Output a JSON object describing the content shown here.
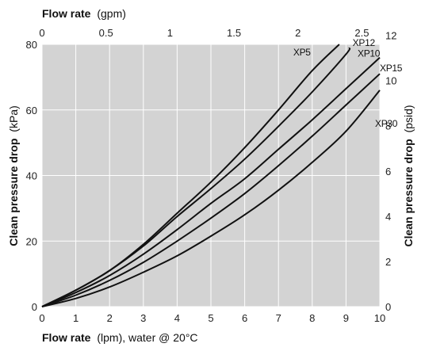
{
  "chart_data": {
    "type": "line",
    "grid": true,
    "background": "#d3d3d3",
    "line_color": "#111111",
    "x_bottom": {
      "title_main": "Flow rate",
      "title_unit": "(lpm), water @ 20°C",
      "range": [
        0,
        10
      ],
      "ticks": [
        "0",
        "1",
        "2",
        "3",
        "4",
        "5",
        "6",
        "7",
        "8",
        "9",
        "10"
      ]
    },
    "x_top": {
      "title_main": "Flow rate",
      "title_unit": "(gpm)",
      "range": [
        0,
        2.64
      ],
      "ticks": [
        "0",
        "0.5",
        "1",
        "1.5",
        "2",
        "2.5"
      ]
    },
    "y_left": {
      "title_main": "Clean pressure drop",
      "title_unit": "(kPa)",
      "range": [
        0,
        80
      ],
      "ticks": [
        "0",
        "20",
        "40",
        "60",
        "80"
      ]
    },
    "y_right": {
      "title_main": "Clean pressure drop",
      "title_unit": "(psid)",
      "range": [
        0,
        11.6
      ],
      "ticks": [
        "0",
        "2",
        "4",
        "6",
        "8",
        "10",
        "12"
      ]
    },
    "series": [
      {
        "name": "XP5",
        "x": [
          0,
          1,
          2,
          3,
          4,
          5,
          6,
          7,
          8,
          8.8
        ],
        "y": [
          0,
          5,
          11,
          19,
          28.5,
          38,
          48.5,
          60,
          72,
          80
        ]
      },
      {
        "name": "XP12",
        "x": [
          0,
          1,
          2,
          3,
          4,
          5,
          6,
          7,
          8,
          9,
          9.1
        ],
        "y": [
          0,
          5,
          11,
          18.5,
          27.5,
          36,
          45,
          55,
          65.5,
          77,
          79
        ]
      },
      {
        "name": "XP10",
        "x": [
          0,
          1,
          2,
          3,
          4,
          5,
          6,
          7,
          8,
          9,
          10
        ],
        "y": [
          0,
          4.3,
          9.5,
          16,
          23.5,
          31.5,
          39,
          48,
          57,
          66.5,
          76
        ]
      },
      {
        "name": "XP15",
        "x": [
          0,
          1,
          2,
          3,
          4,
          5,
          6,
          7,
          8,
          9,
          10
        ],
        "y": [
          0,
          3.5,
          8,
          13.5,
          20,
          27,
          34.5,
          43,
          52,
          61.5,
          71
        ]
      },
      {
        "name": "XP30",
        "x": [
          0,
          1,
          2,
          3,
          4,
          5,
          6,
          7,
          8,
          9,
          10
        ],
        "y": [
          0,
          2.5,
          6,
          10.5,
          15.5,
          21.5,
          28,
          35.5,
          44,
          53.5,
          66
        ]
      }
    ]
  }
}
